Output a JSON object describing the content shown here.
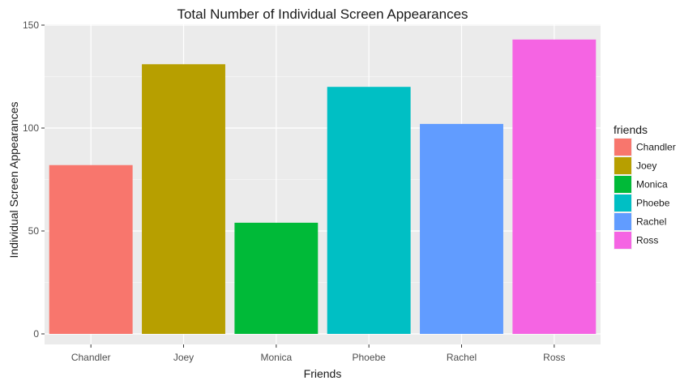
{
  "chart_data": {
    "type": "bar",
    "title": "Total Number of Individual Screen Appearances",
    "xlabel": "Friends",
    "ylabel": "Individual Screen Appearances",
    "categories": [
      "Chandler",
      "Joey",
      "Monica",
      "Phoebe",
      "Rachel",
      "Ross"
    ],
    "values": [
      82,
      131,
      54,
      120,
      102,
      143
    ],
    "colors": [
      "#F8766D",
      "#B79F00",
      "#00BA38",
      "#00BFC4",
      "#619CFF",
      "#F564E3"
    ],
    "ylim": [
      0,
      150
    ],
    "yticks": [
      0,
      50,
      100,
      150
    ],
    "grid": true,
    "panel_background": "#EBEBEB",
    "legend": {
      "title": "friends",
      "position": "right",
      "entries": [
        "Chandler",
        "Joey",
        "Monica",
        "Phoebe",
        "Rachel",
        "Ross"
      ]
    }
  }
}
